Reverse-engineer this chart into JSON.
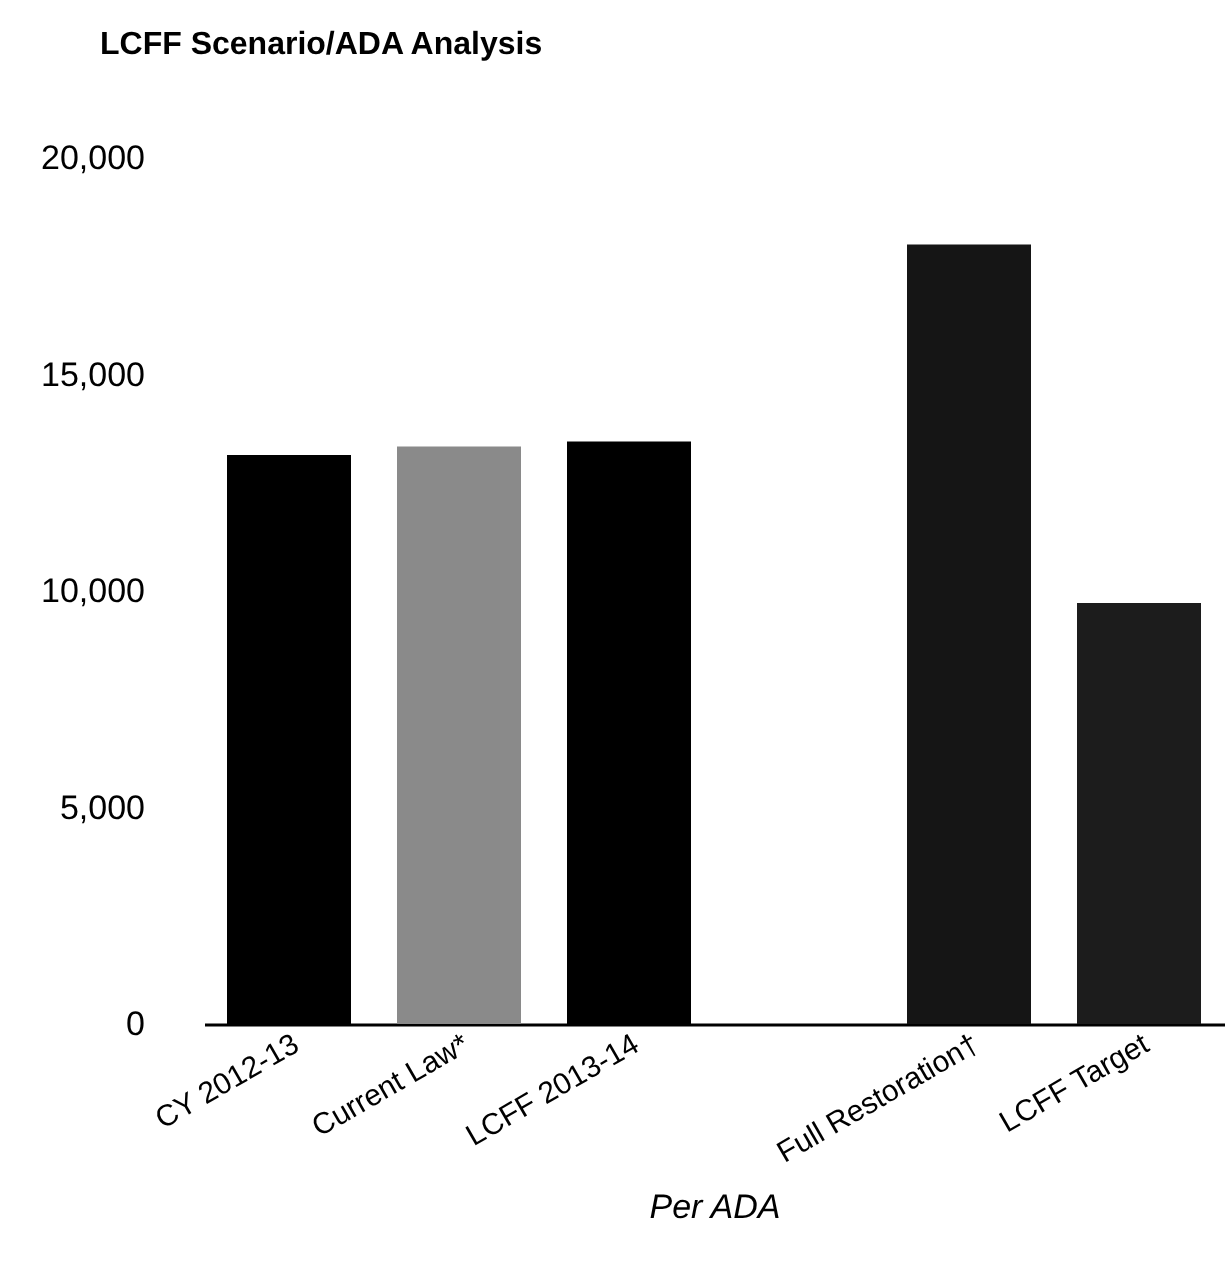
{
  "chart_data": {
    "type": "bar",
    "title": "LCFF Scenario/ADA Analysis",
    "xlabel": "Per ADA",
    "categories": [
      "CY 2012-13",
      "Current Law*",
      "LCFF 2013-14",
      null,
      "Full Restoration†",
      "LCFF Target"
    ],
    "values": [
      13140,
      13340,
      13450,
      null,
      18000,
      9720
    ],
    "colors": [
      "#000000",
      "#8a8a8a",
      "#000000",
      null,
      "#151515",
      "#1c1c1c"
    ],
    "ylim": [
      0,
      20000
    ],
    "yticks": [
      {
        "value": 0,
        "label": "0"
      },
      {
        "value": 5000,
        "label": "5,000"
      },
      {
        "value": 10000,
        "label": "10,000"
      },
      {
        "value": 15000,
        "label": "15,000"
      },
      {
        "value": 20000,
        "label": "20,000"
      }
    ],
    "grid": false
  }
}
